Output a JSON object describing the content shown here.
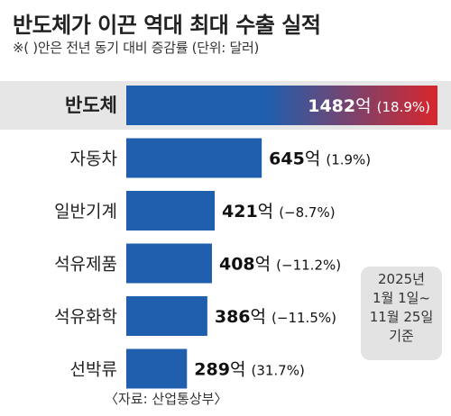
{
  "title": "반도체가 이끈 역대 최대 수출 실적",
  "subtitle": "※(  )안은 전년 동기 대비 증감률   (단위: 달러)",
  "note": [
    "2025년",
    "1월 1일~",
    "11월 25일",
    "기준"
  ],
  "source": "〈자료: 산업통상부〉",
  "colors": {
    "bar": "#1f5fae",
    "highlight_start": "#1f5fae",
    "highlight_end": "#d8262c",
    "band": "#e6e6e6"
  },
  "chart_data": {
    "type": "bar",
    "orientation": "horizontal",
    "unit": "억",
    "categories": [
      "반도체",
      "자동차",
      "일반기계",
      "석유제품",
      "석유화학",
      "선박류"
    ],
    "values": [
      1482,
      645,
      421,
      408,
      386,
      289
    ],
    "change_labels": [
      "(18.9%)",
      "(1.9%)",
      "(−8.7%)",
      "(−11.2%)",
      "(−11.5%)",
      "(31.7%)"
    ],
    "highlight_index": 0
  }
}
